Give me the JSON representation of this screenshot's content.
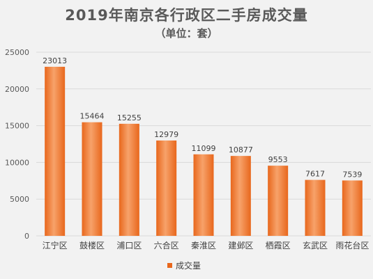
{
  "colors": {
    "bar_light": "#f7a26a",
    "bar_dark": "#e8671c",
    "grid": "#d9d9d9"
  },
  "chart_data": {
    "type": "bar",
    "title": "2019年南京各行政区二手房成交量",
    "subtitle": "（单位：套）",
    "categories": [
      "江宁区",
      "鼓楼区",
      "浦口区",
      "六合区",
      "秦淮区",
      "建邺区",
      "栖霞区",
      "玄武区",
      "雨花台区"
    ],
    "series": [
      {
        "name": "成交量",
        "values": [
          23013,
          15464,
          15255,
          12979,
          11099,
          10877,
          9553,
          7617,
          7539
        ]
      }
    ],
    "ylim": [
      0,
      25000
    ],
    "yticks": [
      "0",
      "5000",
      "10000",
      "15000",
      "20000",
      "25000"
    ],
    "grid": true,
    "legend_position": "bottom"
  }
}
